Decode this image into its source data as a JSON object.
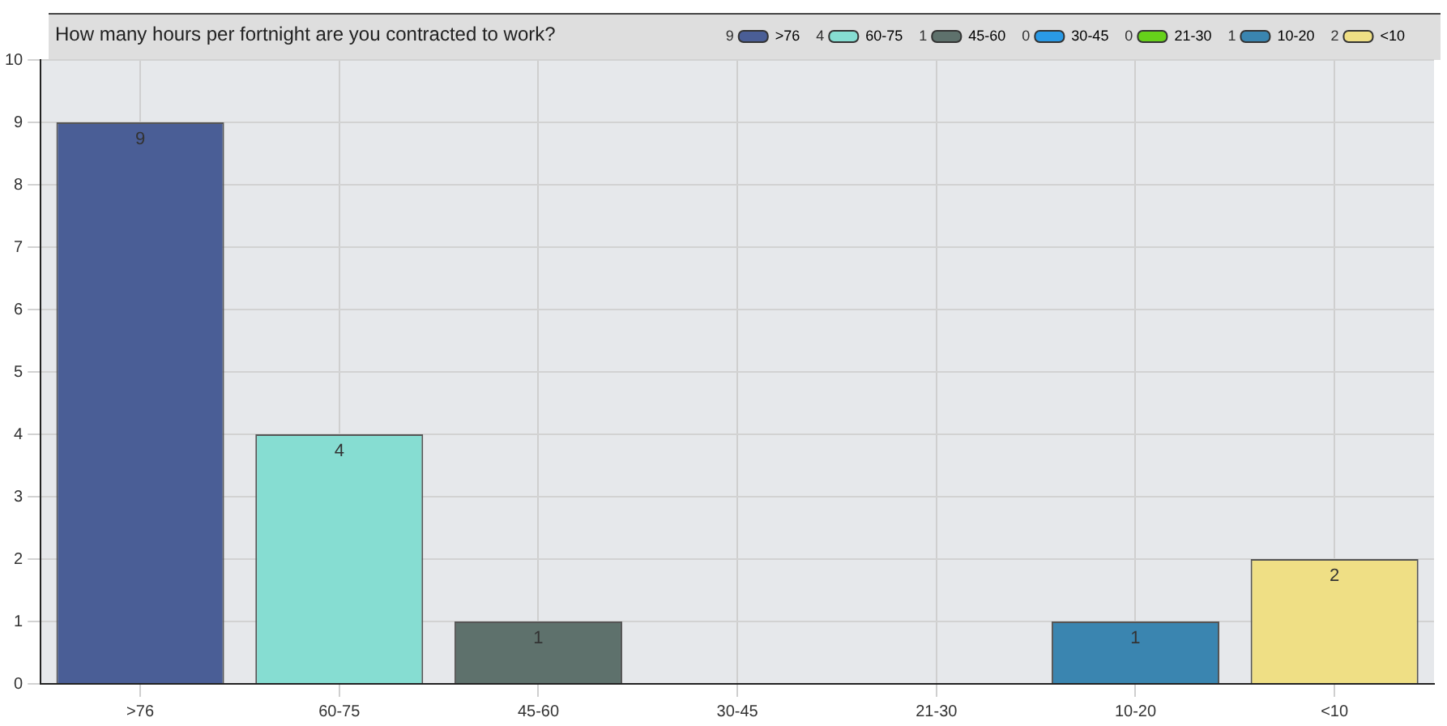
{
  "chart_data": {
    "type": "bar",
    "title": "How many hours per fortnight are you contracted to work?",
    "categories": [
      ">76",
      "60-75",
      "45-60",
      "30-45",
      "21-30",
      "10-20",
      "<10"
    ],
    "series": [
      {
        "name": ">76",
        "color": "#4a5e96",
        "values": [
          9,
          null,
          null,
          null,
          null,
          null,
          null
        ],
        "value_labels": [
          "9",
          null,
          null,
          null,
          null,
          null,
          null
        ]
      },
      {
        "name": "60-75",
        "color": "#86ddd2",
        "values": [
          null,
          4,
          null,
          null,
          null,
          null,
          null
        ],
        "value_labels": [
          null,
          "4",
          null,
          null,
          null,
          null,
          null
        ]
      },
      {
        "name": "45-60",
        "color": "#5e716c",
        "values": [
          null,
          null,
          1,
          null,
          null,
          null,
          null
        ],
        "value_labels": [
          null,
          null,
          "1",
          null,
          null,
          null,
          null
        ]
      },
      {
        "name": "30-45",
        "color": "#2a9ae6",
        "values": [
          null,
          null,
          null,
          0,
          null,
          null,
          null
        ]
      },
      {
        "name": "21-30",
        "color": "#66d11a",
        "values": [
          null,
          null,
          null,
          null,
          0,
          null,
          null
        ]
      },
      {
        "name": "10-20",
        "color": "#3a85b0",
        "values": [
          null,
          null,
          null,
          null,
          null,
          1,
          null
        ],
        "value_labels": [
          null,
          null,
          null,
          null,
          null,
          "1",
          null
        ]
      },
      {
        "name": "<10",
        "color": "#efdf85",
        "values": [
          null,
          null,
          null,
          null,
          null,
          null,
          2
        ],
        "value_labels": [
          null,
          null,
          null,
          null,
          null,
          null,
          "2"
        ]
      }
    ],
    "annotations": [
      "9",
      "4",
      "1",
      "0",
      "0",
      "1",
      "2"
    ],
    "ylim": [
      0,
      10
    ],
    "yticks": [
      0,
      1,
      2,
      3,
      4,
      5,
      6,
      7,
      8,
      9,
      10
    ],
    "grid": true,
    "legend": "top right"
  }
}
